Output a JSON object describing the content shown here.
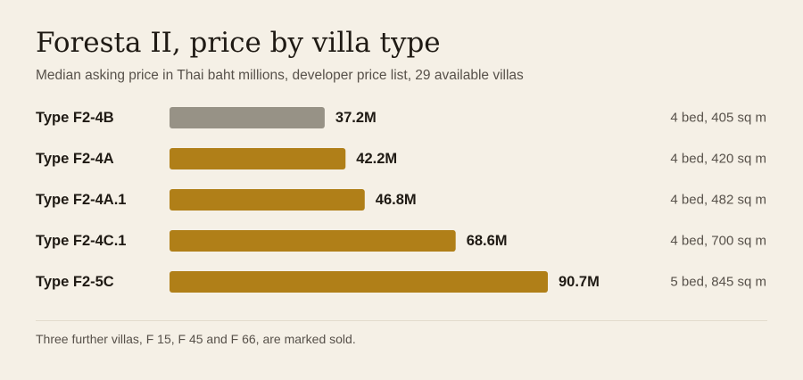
{
  "colors": {
    "background": "#f5f0e6",
    "highlight_bar": "#979286",
    "bar": "#b07f18",
    "text": "#1f1a14",
    "muted_text": "#57514a"
  },
  "chart_data": {
    "type": "bar",
    "orientation": "horizontal",
    "title": "Foresta II, price by villa type",
    "subtitle": "Median asking price in Thai baht millions, developer price list, 29 available villas",
    "categories": [
      "Type F2-4B",
      "Type F2-4A",
      "Type F2-4A.1",
      "Type F2-4C.1",
      "Type F2-5C"
    ],
    "values": [
      37.2,
      42.2,
      46.8,
      68.6,
      90.7
    ],
    "value_labels": [
      "37.2M",
      "42.2M",
      "46.8M",
      "68.6M",
      "90.7M"
    ],
    "details": [
      "4 bed, 405 sq m",
      "4 bed, 420 sq m",
      "4 bed, 482 sq m",
      "4 bed, 700 sq m",
      "5 bed, 845 sq m"
    ],
    "highlighted_category": "Type F2-4B",
    "xlim": [
      0,
      90.7
    ],
    "grid": false,
    "legend": "none"
  },
  "footnote": "Three further villas, F 15, F 45 and F 66, are marked sold."
}
